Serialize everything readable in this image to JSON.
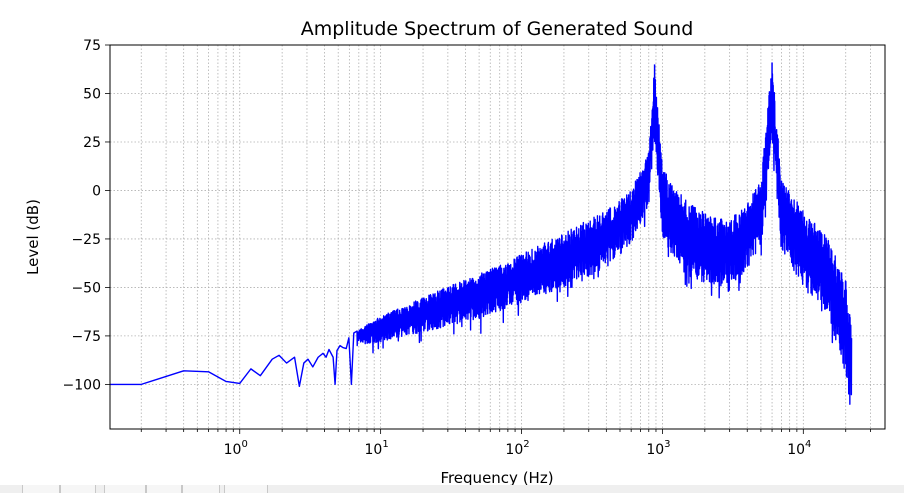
{
  "chart_data": {
    "type": "line",
    "title": "Amplitude Spectrum of Generated Sound",
    "xlabel": "Frequency (Hz)",
    "ylabel": "Level (dB)",
    "xscale": "log",
    "xlim": [
      0.12,
      38000
    ],
    "ylim": [
      -123,
      75
    ],
    "yticks": [
      75,
      50,
      25,
      0,
      -25,
      -50,
      -75,
      -100
    ],
    "ytick_labels": [
      "75",
      "50",
      "25",
      "0",
      "−25",
      "−50",
      "−75",
      "−100"
    ],
    "xtick_labels": [
      {
        "value": 1,
        "base": "10",
        "exp": "0"
      },
      {
        "value": 10,
        "base": "10",
        "exp": "1"
      },
      {
        "value": 100,
        "base": "10",
        "exp": "2"
      },
      {
        "value": 1000,
        "base": "10",
        "exp": "3"
      },
      {
        "value": 10000,
        "base": "10",
        "exp": "4"
      }
    ],
    "grid": true,
    "line_color": "#0000ff",
    "series": [
      {
        "low_freq_points": [
          [
            0.12,
            -100
          ],
          [
            0.2,
            -100
          ],
          [
            0.4,
            -93
          ],
          [
            0.6,
            -93.5
          ],
          [
            0.8,
            -98.5
          ],
          [
            1.0,
            -99.5
          ],
          [
            1.2,
            -92
          ],
          [
            1.4,
            -95.5
          ],
          [
            1.7,
            -87
          ],
          [
            1.9,
            -85
          ],
          [
            2.15,
            -89
          ],
          [
            2.45,
            -86
          ],
          [
            2.65,
            -101
          ],
          [
            2.85,
            -89
          ],
          [
            3.05,
            -87
          ],
          [
            3.3,
            -91
          ],
          [
            3.6,
            -86
          ],
          [
            3.9,
            -84
          ],
          [
            4.1,
            -86
          ],
          [
            4.3,
            -82
          ],
          [
            4.6,
            -86
          ],
          [
            4.75,
            -100
          ],
          [
            4.9,
            -82.5
          ],
          [
            5.15,
            -80
          ],
          [
            5.4,
            -81
          ],
          [
            5.7,
            -81.5
          ],
          [
            5.95,
            -76
          ],
          [
            6.2,
            -100
          ],
          [
            6.45,
            -73.5
          ],
          [
            6.8,
            -72.5
          ]
        ],
        "peaks": [
          {
            "freq": 880,
            "level": 65
          },
          {
            "freq": 6000,
            "level": 66
          }
        ],
        "envelope_upper": [
          [
            6.8,
            -72.5
          ],
          [
            10,
            -65
          ],
          [
            20,
            -55
          ],
          [
            50,
            -43
          ],
          [
            100,
            -33
          ],
          [
            200,
            -22
          ],
          [
            400,
            -10
          ],
          [
            600,
            0
          ],
          [
            800,
            20
          ],
          [
            880,
            65
          ],
          [
            1000,
            12
          ],
          [
            1500,
            -6
          ],
          [
            2500,
            -15
          ],
          [
            3500,
            -12
          ],
          [
            5000,
            5
          ],
          [
            6000,
            66
          ],
          [
            7000,
            5
          ],
          [
            10000,
            -10
          ],
          [
            15000,
            -25
          ],
          [
            20000,
            -45
          ],
          [
            22000,
            -70
          ]
        ],
        "envelope_lower": [
          [
            6.8,
            -80
          ],
          [
            10,
            -78
          ],
          [
            20,
            -73
          ],
          [
            50,
            -66
          ],
          [
            100,
            -58
          ],
          [
            200,
            -50
          ],
          [
            400,
            -40
          ],
          [
            600,
            -27
          ],
          [
            800,
            -8
          ],
          [
            880,
            30
          ],
          [
            1000,
            -25
          ],
          [
            1500,
            -45
          ],
          [
            2500,
            -50
          ],
          [
            3500,
            -46
          ],
          [
            5000,
            -30
          ],
          [
            6000,
            25
          ],
          [
            7000,
            -30
          ],
          [
            10000,
            -50
          ],
          [
            15000,
            -65
          ],
          [
            20000,
            -95
          ],
          [
            22000,
            -118
          ]
        ]
      }
    ]
  },
  "toolbar": {
    "buttons": [
      "",
      "",
      "",
      "",
      "",
      ""
    ]
  }
}
